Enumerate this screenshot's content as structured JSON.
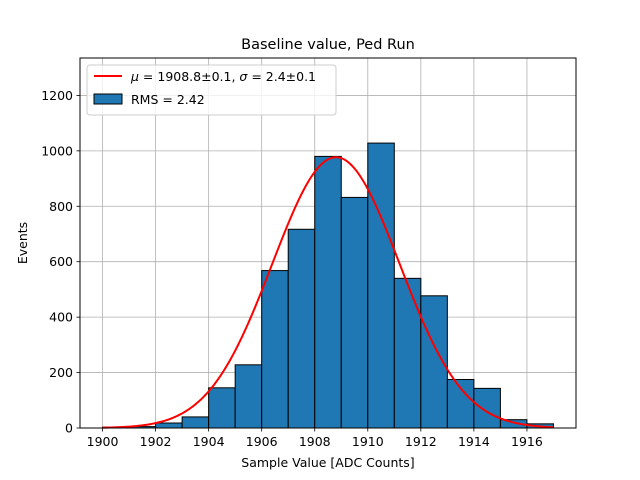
{
  "chart_data": {
    "type": "bar",
    "title": "Baseline value, Ped Run",
    "xlabel": "Sample Value [ADC Counts]",
    "ylabel": "Events",
    "xlim": [
      1899.15,
      1917.85
    ],
    "ylim": [
      0,
      1335
    ],
    "grid": true,
    "bin_width": 1,
    "bin_left_edges": [
      1900,
      1901,
      1902,
      1903,
      1904,
      1905,
      1906,
      1907,
      1908,
      1909,
      1910,
      1911,
      1912,
      1913,
      1914,
      1915,
      1916
    ],
    "values": [
      3,
      5,
      18,
      40,
      145,
      228,
      568,
      717,
      980,
      832,
      1028,
      540,
      477,
      175,
      143,
      30,
      15
    ],
    "x_ticks": [
      1900,
      1902,
      1904,
      1906,
      1908,
      1910,
      1912,
      1914,
      1916
    ],
    "y_ticks": [
      0,
      200,
      400,
      600,
      800,
      1000,
      1200
    ],
    "bar_color": "#1f77b4",
    "fit": {
      "mu": 1908.8,
      "sigma": 2.4,
      "amplitude": 977,
      "x_range": [
        1900,
        1917
      ],
      "color": "#ff0000"
    },
    "legend": {
      "position": "upper-left",
      "fit_mu_symbol": "μ",
      "fit_sigma_symbol": "σ",
      "fit_mu_text": " = 1908.8±0.1, ",
      "fit_sigma_text": " = 2.4±0.1",
      "hist_label": "RMS = 2.42"
    }
  }
}
